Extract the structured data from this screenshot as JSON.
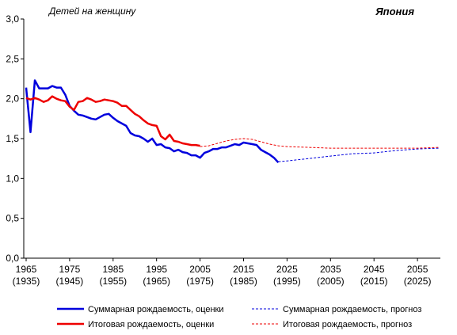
{
  "chart_data": {
    "type": "line",
    "title": "Япония",
    "ylabel": "Детей на женщину",
    "xlabel": "",
    "xlim": [
      1965,
      2060
    ],
    "ylim": [
      0.0,
      3.0
    ],
    "yticks": [
      "0,0",
      "0,5",
      "1,0",
      "1,5",
      "2,0",
      "2,5",
      "3,0"
    ],
    "ytick_values": [
      0.0,
      0.5,
      1.0,
      1.5,
      2.0,
      2.5,
      3.0
    ],
    "xticks": [
      {
        "year": 1965,
        "label": "1965",
        "cohort": "(1935)"
      },
      {
        "year": 1975,
        "label": "1975",
        "cohort": "(1945)"
      },
      {
        "year": 1985,
        "label": "1985",
        "cohort": "(1955)"
      },
      {
        "year": 1995,
        "label": "1995",
        "cohort": "(1965)"
      },
      {
        "year": 2005,
        "label": "2005",
        "cohort": "(1975)"
      },
      {
        "year": 2015,
        "label": "2015",
        "cohort": "(1985)"
      },
      {
        "year": 2025,
        "label": "2025",
        "cohort": "(1995)"
      },
      {
        "year": 2035,
        "label": "2035",
        "cohort": "(2005)"
      },
      {
        "year": 2045,
        "label": "2045",
        "cohort": "(2015)"
      },
      {
        "year": 2055,
        "label": "2055",
        "cohort": "(2025)"
      }
    ],
    "grid": false,
    "legend_position": "bottom",
    "series": [
      {
        "name": "Суммарная рождаемость, оценки",
        "color": "#0000dd",
        "style": "solid",
        "x": [
          1965,
          1966,
          1967,
          1968,
          1969,
          1970,
          1971,
          1972,
          1973,
          1974,
          1975,
          1976,
          1977,
          1978,
          1979,
          1980,
          1981,
          1982,
          1983,
          1984,
          1985,
          1986,
          1987,
          1988,
          1989,
          1990,
          1991,
          1992,
          1993,
          1994,
          1995,
          1996,
          1997,
          1998,
          1999,
          2000,
          2001,
          2002,
          2003,
          2004,
          2005,
          2006,
          2007,
          2008,
          2009,
          2010,
          2011,
          2012,
          2013,
          2014,
          2015,
          2016,
          2017,
          2018,
          2019,
          2020,
          2021,
          2022,
          2023
        ],
        "values": [
          2.14,
          1.58,
          2.23,
          2.13,
          2.13,
          2.13,
          2.16,
          2.14,
          2.14,
          2.05,
          1.91,
          1.85,
          1.8,
          1.79,
          1.77,
          1.75,
          1.74,
          1.77,
          1.8,
          1.81,
          1.76,
          1.72,
          1.69,
          1.66,
          1.57,
          1.54,
          1.53,
          1.5,
          1.46,
          1.5,
          1.42,
          1.43,
          1.39,
          1.38,
          1.34,
          1.36,
          1.33,
          1.32,
          1.29,
          1.29,
          1.26,
          1.32,
          1.34,
          1.37,
          1.37,
          1.39,
          1.39,
          1.41,
          1.43,
          1.42,
          1.45,
          1.44,
          1.43,
          1.42,
          1.36,
          1.33,
          1.3,
          1.26,
          1.2
        ]
      },
      {
        "name": "Итоговая рождаемость, оценки",
        "color": "#ee0000",
        "style": "solid",
        "x": [
          1965,
          1966,
          1967,
          1968,
          1969,
          1970,
          1971,
          1972,
          1973,
          1974,
          1975,
          1976,
          1977,
          1978,
          1979,
          1980,
          1981,
          1982,
          1983,
          1984,
          1985,
          1986,
          1987,
          1988,
          1989,
          1990,
          1991,
          1992,
          1993,
          1994,
          1995,
          1996,
          1997,
          1998,
          1999,
          2000,
          2001,
          2002,
          2003,
          2004,
          2005
        ],
        "values": [
          2.01,
          1.99,
          2.01,
          1.99,
          1.96,
          1.98,
          2.03,
          2.0,
          1.98,
          1.97,
          1.9,
          1.86,
          1.96,
          1.97,
          2.01,
          1.99,
          1.96,
          1.97,
          1.99,
          1.98,
          1.97,
          1.95,
          1.91,
          1.91,
          1.86,
          1.81,
          1.78,
          1.73,
          1.69,
          1.67,
          1.66,
          1.53,
          1.49,
          1.55,
          1.47,
          1.46,
          1.44,
          1.43,
          1.42,
          1.42,
          1.41
        ]
      },
      {
        "name": "Суммарная рождаемость, прогноз",
        "color": "#0000dd",
        "style": "dashed",
        "x": [
          2023,
          2025,
          2030,
          2035,
          2040,
          2045,
          2050,
          2055,
          2060
        ],
        "values": [
          1.21,
          1.22,
          1.25,
          1.28,
          1.31,
          1.32,
          1.35,
          1.37,
          1.38
        ]
      },
      {
        "name": "Итоговая рождаемость, прогноз",
        "color": "#ee0000",
        "style": "dashed",
        "x": [
          2005,
          2007,
          2009,
          2011,
          2013,
          2015,
          2017,
          2019,
          2021,
          2023,
          2025,
          2030,
          2035,
          2040,
          2045,
          2050,
          2055,
          2060
        ],
        "values": [
          1.4,
          1.41,
          1.44,
          1.47,
          1.49,
          1.5,
          1.49,
          1.46,
          1.43,
          1.41,
          1.4,
          1.39,
          1.38,
          1.38,
          1.38,
          1.38,
          1.38,
          1.39
        ]
      }
    ]
  }
}
